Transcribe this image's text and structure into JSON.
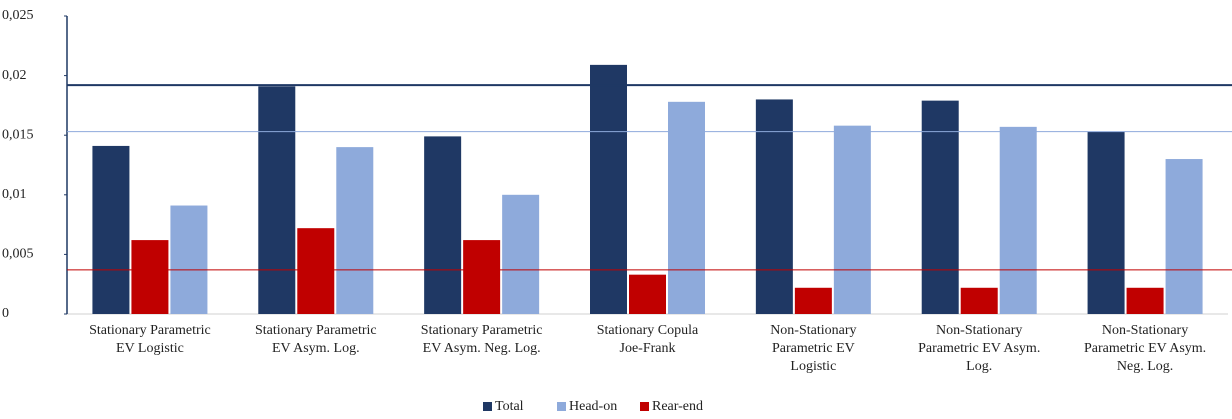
{
  "chart_data": {
    "type": "bar",
    "categories": [
      [
        "Stationary Parametric",
        "EV Logistic"
      ],
      [
        "Stationary Parametric",
        "EV Asym. Log."
      ],
      [
        "Stationary Parametric",
        "EV Asym. Neg. Log."
      ],
      [
        "Stationary Copula",
        "Joe-Frank"
      ],
      [
        "Non-Stationary",
        "Parametric EV",
        "Logistic"
      ],
      [
        "Non-Stationary",
        "Parametric EV Asym.",
        "Log."
      ],
      [
        "Non-Stationary",
        "Parametric EV Asym.",
        "Neg. Log."
      ]
    ],
    "series": [
      {
        "name": "Total",
        "color": "#1f3864",
        "values": [
          0.0141,
          0.0191,
          0.0149,
          0.0209,
          0.018,
          0.0179,
          0.0153
        ]
      },
      {
        "name": "Rear-end",
        "color": "#c00000",
        "values": [
          0.0062,
          0.0072,
          0.0062,
          0.0033,
          0.0022,
          0.0022,
          0.0022
        ]
      },
      {
        "name": "Head-on",
        "color": "#8eaadb",
        "values": [
          0.0091,
          0.014,
          0.01,
          0.0178,
          0.0158,
          0.0157,
          0.013
        ]
      }
    ],
    "reference_lines": [
      {
        "value": 0.0192,
        "color": "#1f3864"
      },
      {
        "value": 0.0153,
        "color": "#8eaadb"
      },
      {
        "value": 0.0037,
        "color": "#c00000"
      }
    ],
    "ylim": [
      0,
      0.025
    ],
    "yticks": [
      0,
      {
        "value": 0.005,
        "label": "0,005"
      },
      {
        "value": 0.01,
        "label": "0,01"
      },
      {
        "value": 0.015,
        "label": "0,015"
      },
      {
        "value": 0.02,
        "label": "0,02"
      },
      {
        "value": 0.025,
        "label": "0,025"
      }
    ],
    "grid": false
  }
}
